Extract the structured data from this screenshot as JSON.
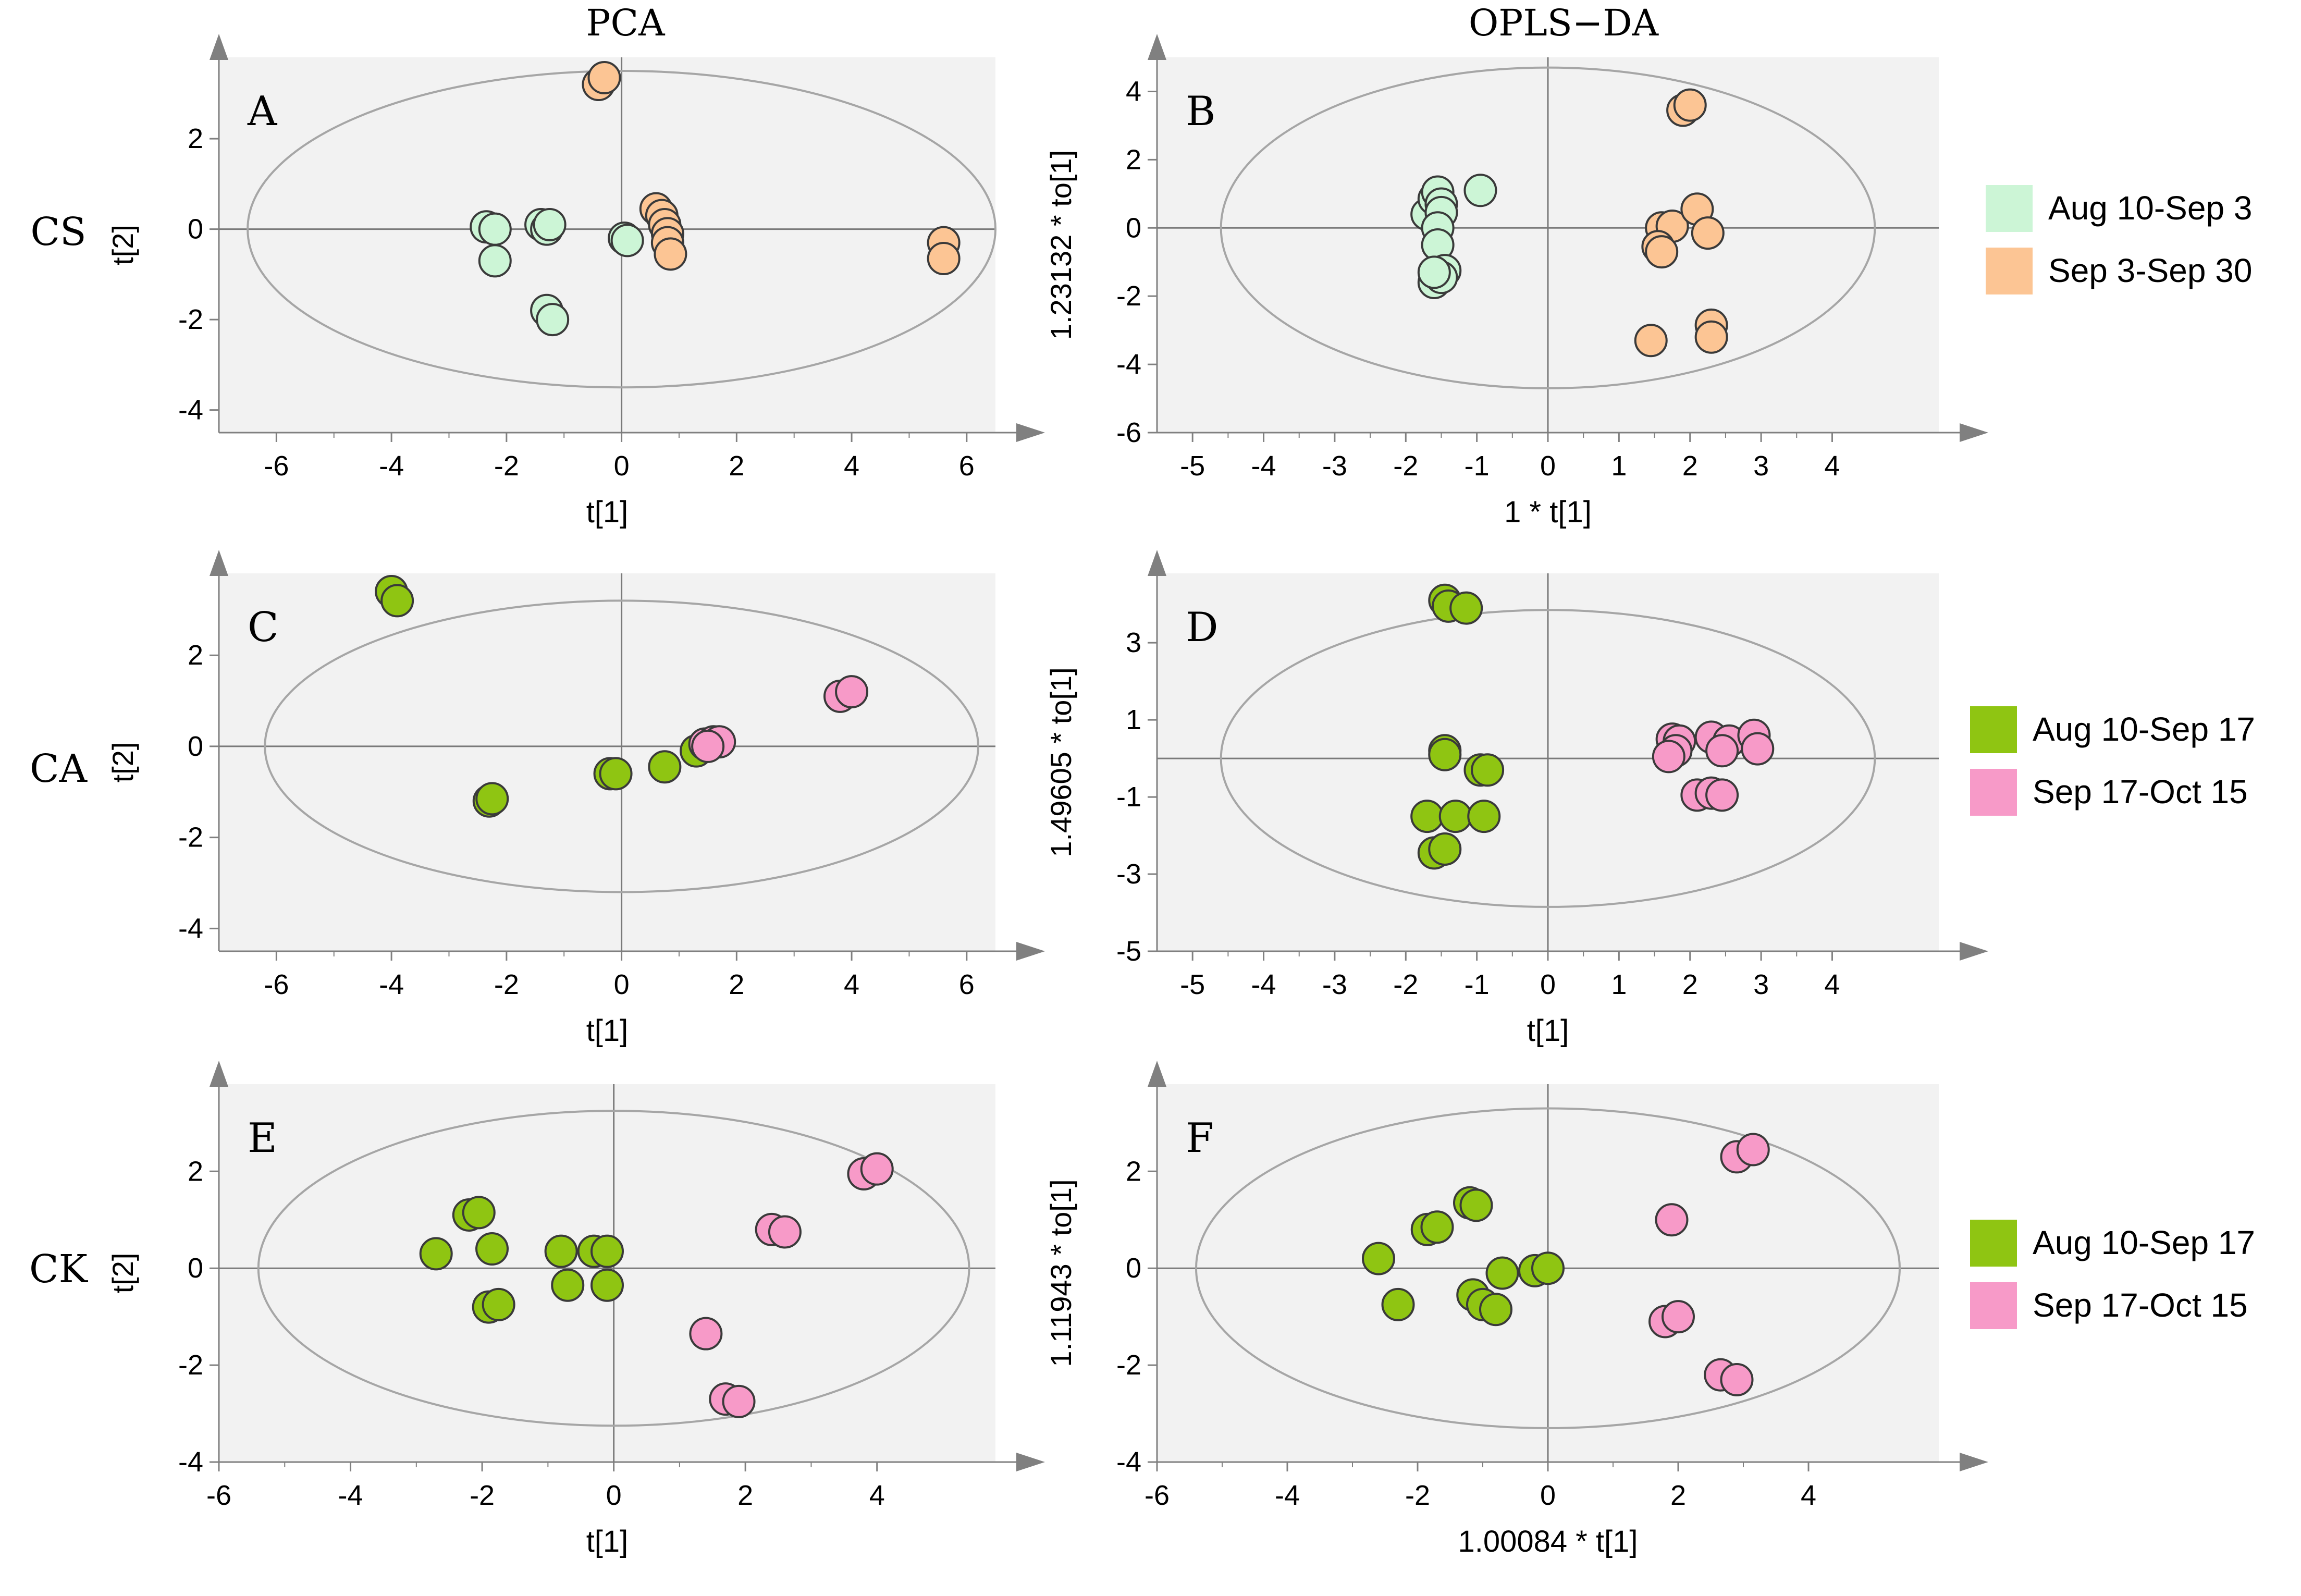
{
  "headers": {
    "pca": "PCA",
    "oplsda": "OPLS−DA"
  },
  "row_labels": [
    "CS",
    "CA",
    "CK"
  ],
  "colors": {
    "plot_bg": "#f2f2f2",
    "axis": "#808080",
    "ellipse": "#a6a6a6",
    "marker_edge": "#3a3a3a",
    "light_green": "#ccf5d6",
    "peach": "#fcc594",
    "lime_green": "#8fc512",
    "pink": "#f79ac8"
  },
  "legends": [
    {
      "row": 0,
      "items": [
        {
          "label": "Aug 10-Sep 3",
          "color": "#ccf5d6"
        },
        {
          "label": "Sep 3-Sep 30",
          "color": "#fcc594"
        }
      ]
    },
    {
      "row": 1,
      "items": [
        {
          "label": "Aug 10-Sep 17",
          "color": "#8fc512"
        },
        {
          "label": "Sep 17-Oct 15",
          "color": "#f79ac8"
        }
      ]
    },
    {
      "row": 2,
      "items": [
        {
          "label": "Aug 10-Sep 17",
          "color": "#8fc512"
        },
        {
          "label": "Sep 17-Oct 15",
          "color": "#f79ac8"
        }
      ]
    }
  ],
  "chart_data": [
    {
      "panel": "A",
      "type": "scatter",
      "method": "PCA",
      "row_label": "CS",
      "xlabel": "t[1]",
      "ylabel": "t[2]",
      "xlim": [
        -7,
        6.5
      ],
      "ylim": [
        -4.5,
        3.8
      ],
      "xticks": [
        -6,
        -4,
        -2,
        0,
        2,
        4,
        6
      ],
      "yticks": [
        -4,
        -2,
        0,
        2
      ],
      "ellipse": {
        "rx": 6.5,
        "ry": 3.5
      },
      "series": [
        {
          "name": "Aug 10-Sep 3",
          "color": "#ccf5d6",
          "points": [
            [
              -2.35,
              0.05
            ],
            [
              -2.2,
              0.0
            ],
            [
              -2.2,
              -0.7
            ],
            [
              -1.4,
              0.1
            ],
            [
              -1.3,
              0.0
            ],
            [
              -1.25,
              0.1
            ],
            [
              -1.3,
              -1.8
            ],
            [
              -1.2,
              -2.0
            ],
            [
              0.05,
              -0.2
            ],
            [
              0.1,
              -0.25
            ]
          ]
        },
        {
          "name": "Sep 3-Sep 30",
          "color": "#fcc594",
          "points": [
            [
              -0.4,
              3.2
            ],
            [
              -0.3,
              3.35
            ],
            [
              0.6,
              0.45
            ],
            [
              0.7,
              0.3
            ],
            [
              0.75,
              0.1
            ],
            [
              0.8,
              -0.1
            ],
            [
              0.8,
              -0.3
            ],
            [
              0.85,
              -0.55
            ],
            [
              5.6,
              -0.3
            ],
            [
              5.6,
              -0.65
            ]
          ]
        }
      ]
    },
    {
      "panel": "B",
      "type": "scatter",
      "method": "OPLS-DA",
      "row_label": "CS",
      "xlabel": "1 * t[1]",
      "ylabel": "1.23132 * to[1]",
      "xlim": [
        -5.5,
        5.5
      ],
      "ylim": [
        -6,
        5
      ],
      "xticks": [
        -5,
        -4,
        -3,
        -2,
        -1,
        0,
        1,
        2,
        3,
        4
      ],
      "yticks": [
        -6,
        -4,
        -2,
        0,
        2,
        4
      ],
      "ellipse": {
        "rx": 4.6,
        "ry": 4.7
      },
      "series": [
        {
          "name": "Aug 10-Sep 3",
          "color": "#ccf5d6",
          "points": [
            [
              -1.7,
              0.4
            ],
            [
              -1.6,
              0.85
            ],
            [
              -1.55,
              1.05
            ],
            [
              -1.5,
              0.7
            ],
            [
              -1.5,
              0.45
            ],
            [
              -1.55,
              0.0
            ],
            [
              -1.55,
              -0.5
            ],
            [
              -1.45,
              -1.25
            ],
            [
              -1.6,
              -1.6
            ],
            [
              -1.5,
              -1.45
            ],
            [
              -1.6,
              -1.3
            ],
            [
              -0.95,
              1.1
            ]
          ]
        },
        {
          "name": "Sep 3-Sep 30",
          "color": "#fcc594",
          "points": [
            [
              1.9,
              3.45
            ],
            [
              2.0,
              3.6
            ],
            [
              1.6,
              0.0
            ],
            [
              1.75,
              0.05
            ],
            [
              2.1,
              0.55
            ],
            [
              2.25,
              -0.15
            ],
            [
              1.55,
              -0.55
            ],
            [
              1.6,
              -0.7
            ],
            [
              1.45,
              -3.3
            ],
            [
              2.3,
              -2.85
            ],
            [
              2.3,
              -3.2
            ]
          ]
        }
      ]
    },
    {
      "panel": "C",
      "type": "scatter",
      "method": "PCA",
      "row_label": "CA",
      "xlabel": "t[1]",
      "ylabel": "t[2]",
      "xlim": [
        -7,
        6.5
      ],
      "ylim": [
        -4.5,
        3.8
      ],
      "xticks": [
        -6,
        -4,
        -2,
        0,
        2,
        4,
        6
      ],
      "yticks": [
        -4,
        -2,
        0,
        2
      ],
      "ellipse": {
        "rx": 6.2,
        "ry": 3.2
      },
      "series": [
        {
          "name": "Aug 10-Sep 17",
          "color": "#8fc512",
          "points": [
            [
              -4.0,
              3.4
            ],
            [
              -3.9,
              3.2
            ],
            [
              -2.3,
              -1.2
            ],
            [
              -2.25,
              -1.15
            ],
            [
              -0.2,
              -0.6
            ],
            [
              -0.1,
              -0.6
            ],
            [
              0.75,
              -0.45
            ],
            [
              1.3,
              -0.1
            ]
          ]
        },
        {
          "name": "Sep 17-Oct 15",
          "color": "#f79ac8",
          "points": [
            [
              1.45,
              0.05
            ],
            [
              1.6,
              0.1
            ],
            [
              1.7,
              0.1
            ],
            [
              1.5,
              0.0
            ],
            [
              3.8,
              1.1
            ],
            [
              4.0,
              1.2
            ]
          ]
        }
      ]
    },
    {
      "panel": "D",
      "type": "scatter",
      "method": "OPLS-DA",
      "row_label": "CA",
      "xlabel": "t[1]",
      "ylabel": "1.49605 * to[1]",
      "xlim": [
        -5.5,
        5.5
      ],
      "ylim": [
        -5,
        4.8
      ],
      "xticks": [
        -5,
        -4,
        -3,
        -2,
        -1,
        0,
        1,
        2,
        3,
        4
      ],
      "yticks": [
        -5,
        -3,
        -1,
        1,
        3
      ],
      "ellipse": {
        "rx": 4.6,
        "ry": 3.85
      },
      "series": [
        {
          "name": "Aug 10-Sep 17",
          "color": "#8fc512",
          "points": [
            [
              -1.45,
              4.1
            ],
            [
              -1.4,
              3.95
            ],
            [
              -1.15,
              3.9
            ],
            [
              -1.45,
              0.2
            ],
            [
              -1.45,
              0.1
            ],
            [
              -0.95,
              -0.3
            ],
            [
              -0.85,
              -0.3
            ],
            [
              -1.7,
              -1.5
            ],
            [
              -1.3,
              -1.5
            ],
            [
              -0.9,
              -1.5
            ],
            [
              -1.6,
              -2.45
            ],
            [
              -1.45,
              -2.35
            ]
          ]
        },
        {
          "name": "Sep 17-Oct 15",
          "color": "#f79ac8",
          "points": [
            [
              1.75,
              0.5
            ],
            [
              1.85,
              0.45
            ],
            [
              2.3,
              0.55
            ],
            [
              2.55,
              0.45
            ],
            [
              2.9,
              0.6
            ],
            [
              1.8,
              0.2
            ],
            [
              2.45,
              0.2
            ],
            [
              2.95,
              0.25
            ],
            [
              2.1,
              -0.95
            ],
            [
              2.3,
              -0.9
            ],
            [
              2.45,
              -0.95
            ],
            [
              1.7,
              0.05
            ]
          ]
        }
      ]
    },
    {
      "panel": "E",
      "type": "scatter",
      "method": "PCA",
      "row_label": "CK",
      "xlabel": "t[1]",
      "ylabel": "t[2]",
      "xlim": [
        -6,
        5.8
      ],
      "ylim": [
        -4,
        3.8
      ],
      "xticks": [
        -6,
        -4,
        -2,
        0,
        2,
        4
      ],
      "yticks": [
        -4,
        -2,
        0,
        2
      ],
      "ellipse": {
        "rx": 5.4,
        "ry": 3.25
      },
      "series": [
        {
          "name": "Aug 10-Sep 17",
          "color": "#8fc512",
          "points": [
            [
              -2.7,
              0.3
            ],
            [
              -2.2,
              1.1
            ],
            [
              -2.05,
              1.15
            ],
            [
              -1.85,
              0.4
            ],
            [
              -1.9,
              -0.8
            ],
            [
              -1.75,
              -0.75
            ],
            [
              -0.8,
              0.35
            ],
            [
              -0.7,
              -0.35
            ],
            [
              -0.3,
              0.35
            ],
            [
              -0.1,
              0.35
            ],
            [
              -0.1,
              -0.35
            ]
          ]
        },
        {
          "name": "Sep 17-Oct 15",
          "color": "#f79ac8",
          "points": [
            [
              2.4,
              0.8
            ],
            [
              2.6,
              0.75
            ],
            [
              3.8,
              1.95
            ],
            [
              4.0,
              2.05
            ],
            [
              1.4,
              -1.35
            ],
            [
              1.7,
              -2.7
            ],
            [
              1.9,
              -2.75
            ]
          ]
        }
      ]
    },
    {
      "panel": "F",
      "type": "scatter",
      "method": "OPLS-DA",
      "row_label": "CK",
      "xlabel": "1.00084 * t[1]",
      "ylabel": "1.11943 * to[1]",
      "xlim": [
        -6,
        6
      ],
      "ylim": [
        -4,
        3.8
      ],
      "xticks": [
        -6,
        -4,
        -2,
        0,
        2,
        4
      ],
      "yticks": [
        -4,
        -2,
        0,
        2
      ],
      "ellipse": {
        "rx": 5.4,
        "ry": 3.3
      },
      "series": [
        {
          "name": "Aug 10-Sep 17",
          "color": "#8fc512",
          "points": [
            [
              -2.6,
              0.2
            ],
            [
              -2.3,
              -0.75
            ],
            [
              -1.85,
              0.8
            ],
            [
              -1.7,
              0.85
            ],
            [
              -1.2,
              1.35
            ],
            [
              -1.1,
              1.3
            ],
            [
              -1.15,
              -0.55
            ],
            [
              -1.0,
              -0.75
            ],
            [
              -0.8,
              -0.85
            ],
            [
              -0.7,
              -0.1
            ],
            [
              -0.2,
              -0.05
            ],
            [
              0.0,
              0.0
            ]
          ]
        },
        {
          "name": "Sep 17-Oct 15",
          "color": "#f79ac8",
          "points": [
            [
              1.9,
              1.0
            ],
            [
              2.9,
              2.3
            ],
            [
              3.15,
              2.45
            ],
            [
              1.8,
              -1.1
            ],
            [
              2.0,
              -1.0
            ],
            [
              2.65,
              -2.2
            ],
            [
              2.9,
              -2.3
            ]
          ]
        }
      ]
    }
  ]
}
